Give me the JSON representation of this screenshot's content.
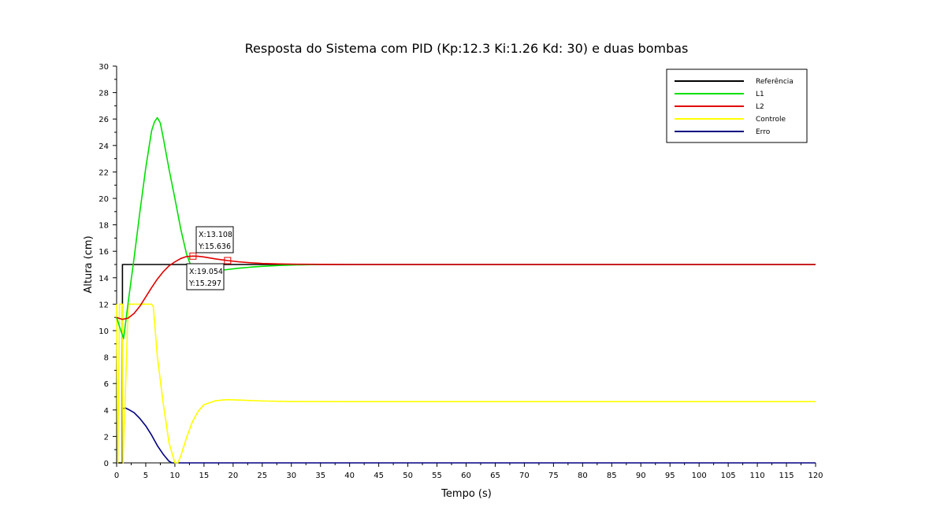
{
  "chart_data": {
    "type": "line",
    "title": "Resposta do Sistema com PID (Kp:12.3 Ki:1.26 Kd: 30) e duas bombas",
    "xlabel": "Tempo (s)",
    "ylabel": "Altura (cm)",
    "xlim": [
      0,
      120
    ],
    "ylim": [
      0,
      30
    ],
    "xticks": [
      0,
      5,
      10,
      15,
      20,
      25,
      30,
      35,
      40,
      45,
      50,
      55,
      60,
      65,
      70,
      75,
      80,
      85,
      90,
      95,
      100,
      105,
      110,
      115,
      120
    ],
    "yticks": [
      0,
      2,
      4,
      6,
      8,
      10,
      12,
      14,
      16,
      18,
      20,
      22,
      24,
      26,
      28,
      30
    ],
    "grid": false,
    "legend_position": "top-right",
    "series": [
      {
        "name": "Referência",
        "color": "#000000",
        "x": [
          0,
          1,
          1,
          120
        ],
        "y": [
          0,
          0,
          15,
          15
        ]
      },
      {
        "name": "L1",
        "color": "#00e000",
        "x": [
          0,
          0.5,
          1.2,
          2,
          3,
          4,
          5,
          6,
          6.5,
          7,
          7.5,
          8,
          9,
          10,
          11,
          12,
          13,
          14,
          15,
          17,
          19,
          21,
          23,
          25,
          28,
          31,
          35
        ],
        "y": [
          11,
          10.3,
          9.4,
          12.2,
          15.5,
          19,
          22.3,
          25.1,
          25.8,
          26.1,
          25.7,
          24.6,
          22.2,
          20,
          17.7,
          15.8,
          14.6,
          14.35,
          14.38,
          14.5,
          14.62,
          14.72,
          14.8,
          14.86,
          14.93,
          14.97,
          15
        ]
      },
      {
        "name": "L2",
        "color": "#e00000",
        "x": [
          0,
          1,
          2,
          3,
          4,
          5,
          6,
          7,
          8,
          9,
          10,
          11,
          12,
          13.108,
          14,
          15,
          17,
          19.054,
          21,
          23,
          25,
          28,
          31,
          35,
          40,
          120
        ],
        "y": [
          11,
          10.85,
          10.95,
          11.3,
          11.85,
          12.55,
          13.25,
          13.9,
          14.45,
          14.9,
          15.2,
          15.45,
          15.6,
          15.636,
          15.62,
          15.57,
          15.42,
          15.297,
          15.2,
          15.13,
          15.08,
          15.04,
          15.02,
          15.01,
          15,
          15
        ]
      },
      {
        "name": "Controle",
        "color": "#ffff00",
        "x": [
          0,
          0.2,
          0.5,
          1,
          1.1,
          2,
          3,
          4,
          5,
          6,
          6.3,
          7,
          8,
          9,
          10,
          10.5,
          11,
          12,
          13,
          14,
          15,
          17,
          19,
          21,
          25,
          30,
          40,
          120
        ],
        "y": [
          12,
          0,
          12,
          12,
          0,
          12,
          12,
          12,
          12,
          12,
          11.8,
          8,
          4.5,
          1.5,
          0,
          0,
          0.5,
          1.9,
          3.1,
          3.9,
          4.4,
          4.7,
          4.78,
          4.75,
          4.68,
          4.64,
          4.63,
          4.63
        ]
      },
      {
        "name": "Erro",
        "color": "#000080",
        "x": [
          1,
          1,
          1.5,
          2,
          3,
          4,
          5,
          6,
          7,
          8,
          9,
          9.5,
          10,
          62.5,
          120
        ],
        "y": [
          0,
          4.1,
          4.15,
          4.05,
          3.8,
          3.35,
          2.8,
          2.1,
          1.3,
          0.65,
          0.12,
          0,
          0,
          0,
          0
        ]
      }
    ],
    "annotations": [
      {
        "x": 13.108,
        "y": 15.636,
        "label_x": "X:13.108",
        "label_y": "Y:15.636"
      },
      {
        "x": 19.054,
        "y": 15.297,
        "label_x": "X:19.054",
        "label_y": "Y:15.297"
      }
    ]
  }
}
